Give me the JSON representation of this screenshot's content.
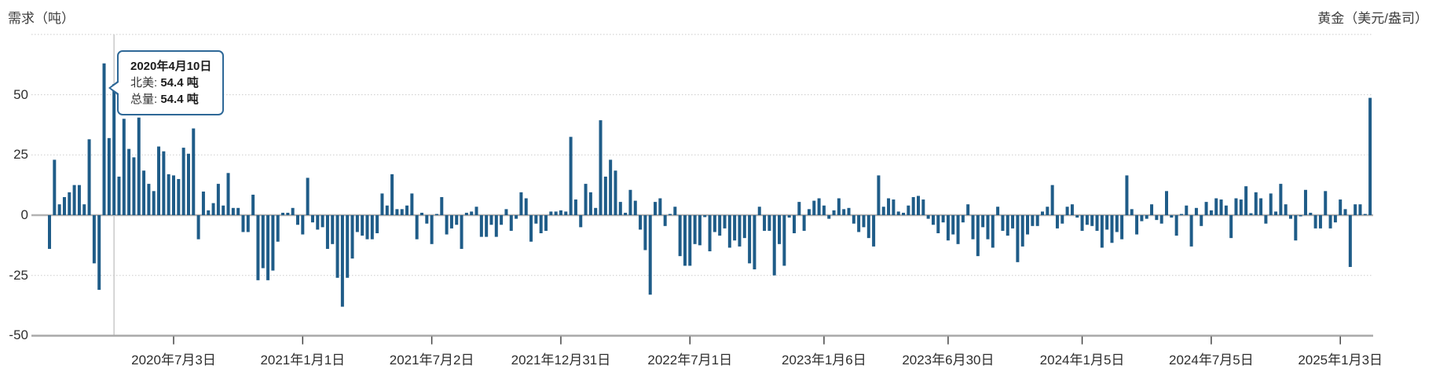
{
  "page": {
    "title_left": "需求（吨）",
    "title_right": "黄金（美元/盎司）"
  },
  "tooltip": {
    "date": "2020年4月10日",
    "rows": [
      {
        "label": "北美:",
        "value": "54.4 吨"
      },
      {
        "label": "总量:",
        "value": "54.4 吨"
      }
    ]
  },
  "colors": {
    "bar": "#1f5c88",
    "tooltip_border": "#2e6897",
    "crosshair": "#c9c9c9",
    "grid": "#cbcbcb",
    "zero_line": "#b3b3b3",
    "axis_line": "#a8a8a8",
    "tick": "#444444",
    "label_text": "#2e2e2e"
  },
  "chart_data": {
    "type": "bar",
    "title": "需求（吨）",
    "ylabel": "需求（吨）",
    "ylabel_right": "黄金（美元/盎司）",
    "unit": "吨",
    "ylim": [
      -50,
      75
    ],
    "grid": "dotted-horizontal",
    "gridline_values": [
      75,
      50,
      25,
      -25
    ],
    "y_ticks": [
      50,
      25,
      0,
      -25,
      -50
    ],
    "y_tick_labels": [
      "50",
      "25",
      "0",
      "-25",
      "-50"
    ],
    "x_start_date": "2020-01-10",
    "x_interval_days": 7,
    "x_tick_labels": [
      "2020年7月3日",
      "2021年1月1日",
      "2021年7月2日",
      "2021年12月31日",
      "2022年7月1日",
      "2023年1月6日",
      "2023年6月30日",
      "2024年1月5日",
      "2024年7月5日",
      "2025年1月3日"
    ],
    "x_tick_weeks": [
      25,
      51,
      77,
      103,
      129,
      156,
      181,
      208,
      234,
      260
    ],
    "hovered_index": 13,
    "hovered_date": "2020年4月10日",
    "hovered_value": 54.4,
    "values": [
      -14,
      23,
      4.5,
      7.5,
      9.5,
      12.5,
      12.5,
      4.5,
      31.5,
      -20,
      -31,
      63,
      32,
      54.4,
      16,
      40,
      27.5,
      24,
      40.5,
      18.5,
      13,
      10,
      28.5,
      26.5,
      17,
      16.5,
      15,
      28,
      25.5,
      36,
      -10,
      9.8,
      2,
      5,
      13,
      4,
      17.5,
      3,
      3,
      -7,
      -7,
      8.5,
      -27,
      -22,
      -27,
      -23,
      -11,
      1,
      1,
      3,
      -4,
      -8,
      15.5,
      -3,
      -6,
      -5,
      -14,
      -12,
      -26,
      -38,
      -26,
      -18,
      -7,
      -8.5,
      -10,
      -10,
      -7.5,
      9,
      4,
      17,
      2.5,
      2.5,
      4,
      9,
      -10,
      1,
      -3.5,
      -12,
      0.5,
      7.5,
      -8,
      -5.5,
      -4,
      -14,
      1,
      1.5,
      3.5,
      -9,
      -9,
      -4,
      -9,
      -4,
      2.5,
      -6.5,
      -1.5,
      9.5,
      7,
      -11,
      -3.5,
      -7.5,
      -6.5,
      1.5,
      1.5,
      2,
      1.5,
      32.5,
      6.5,
      -5,
      13,
      9.5,
      3,
      39.4,
      16,
      23,
      18.5,
      5.5,
      1,
      10.5,
      6,
      -6,
      -14.5,
      -33,
      5.5,
      7,
      -4.5,
      0.5,
      3.5,
      -17,
      -21,
      -21,
      -12,
      -12.5,
      -0.8,
      -15,
      -7,
      -8.5,
      -5.5,
      -13.5,
      -10.5,
      -13,
      -9.5,
      -20,
      -22.5,
      3.5,
      -6.5,
      -6.5,
      -25,
      -12,
      -21,
      -1,
      -7.5,
      5.5,
      -6.5,
      2.5,
      6,
      7,
      4,
      -1.5,
      2,
      7,
      2.5,
      3,
      -3.5,
      -7,
      -5,
      -9.5,
      -13,
      16.5,
      3.5,
      7,
      6.5,
      1.5,
      1,
      4,
      7.5,
      8,
      6.5,
      -1.5,
      -4,
      -7.5,
      -3,
      -10.5,
      -8,
      -12,
      -3,
      4.5,
      -10,
      -17,
      -5,
      -10,
      -13.5,
      3.5,
      -6.5,
      -8.5,
      -5.5,
      -19.5,
      -13,
      -8,
      -4.5,
      -4.5,
      1.5,
      3.5,
      12.5,
      -5.5,
      -3.5,
      3.5,
      4.5,
      -1,
      -6.5,
      -4,
      -4.5,
      -6.5,
      -13.5,
      -6,
      -11.5,
      -7,
      -10,
      16.5,
      2.5,
      -8,
      -2.5,
      -1.5,
      4.5,
      -2,
      -3.5,
      10,
      -1,
      -8.5,
      0.5,
      4,
      -13,
      3,
      -4.5,
      5.5,
      2,
      7,
      6.5,
      4,
      -9.5,
      7,
      6.5,
      12,
      0.8,
      9.5,
      7,
      -3.5,
      9,
      1.5,
      13,
      4.5,
      -1.5,
      -10.5,
      -0.5,
      10.5,
      1,
      -5.5,
      -5.5,
      10,
      -5.5,
      -3,
      6.5,
      2.5,
      -21.5,
      4.5,
      4.5,
      0.5,
      48.7
    ]
  }
}
